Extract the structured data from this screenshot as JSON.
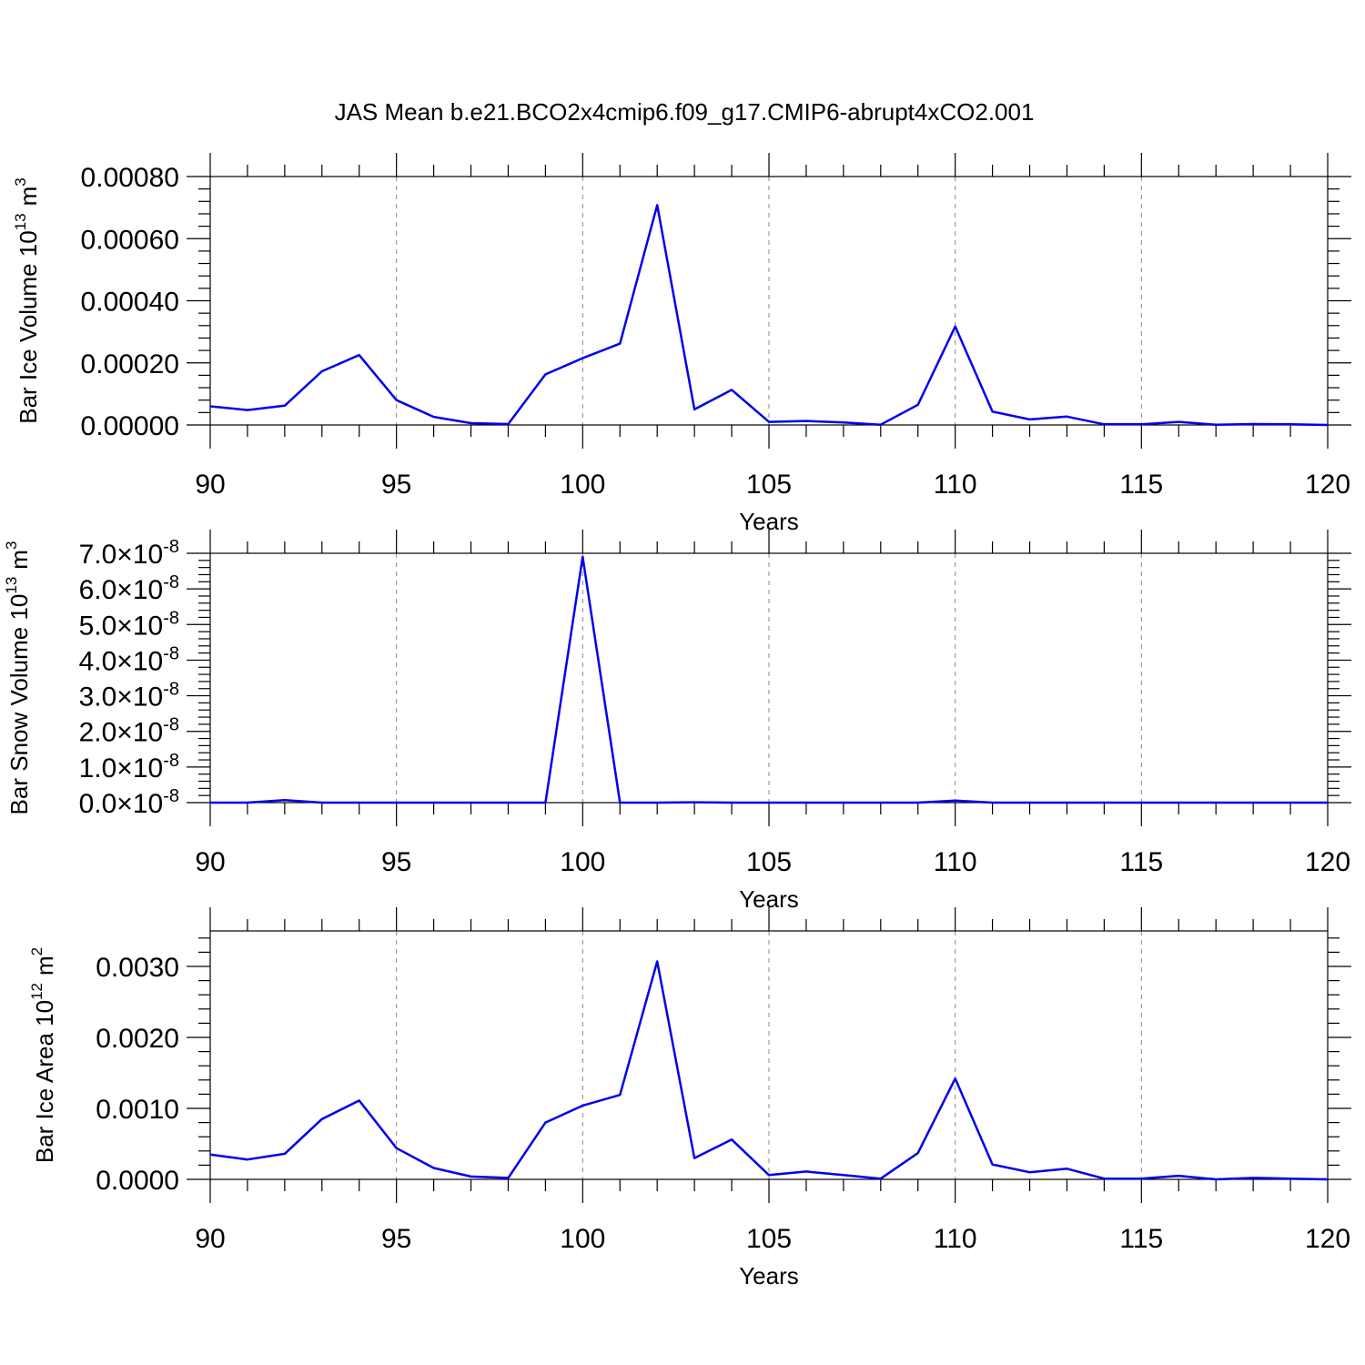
{
  "title": "JAS Mean b.e21.BCO2x4cmip6.f09_g17.CMIP6-abrupt4xCO2.001",
  "colors": {
    "line": "#0000ee",
    "axis": "#000000",
    "grid": "#888888"
  },
  "chart_data": [
    {
      "type": "line",
      "ylabel": {
        "main": "Bar Ice Volume 10",
        "sup": "13",
        "unit": "m",
        "unit_sup": "3"
      },
      "xlabel": "Years",
      "xlim": [
        90,
        120
      ],
      "ylim": [
        0,
        0.0008
      ],
      "x_ticks": [
        "90",
        "95",
        "100",
        "105",
        "110",
        "115",
        "120"
      ],
      "y_ticks": [
        "0.00000",
        "0.00020",
        "0.00040",
        "0.00060",
        "0.00080"
      ],
      "grid": "vertical dashed at major x ticks",
      "x": [
        90,
        91,
        92,
        93,
        94,
        95,
        96,
        97,
        98,
        99,
        100,
        101,
        102,
        103,
        104,
        105,
        106,
        107,
        108,
        109,
        110,
        111,
        112,
        113,
        114,
        115,
        116,
        117,
        118,
        119,
        120
      ],
      "values": [
        6e-05,
        4.8e-05,
        6.2e-05,
        0.000173,
        0.000225,
        8e-05,
        2.6e-05,
        6e-06,
        3e-06,
        0.000163,
        0.000215,
        0.000262,
        0.000708,
        5e-05,
        0.000113,
        1e-05,
        1.3e-05,
        8e-06,
        1e-06,
        6.5e-05,
        0.000317,
        4.3e-05,
        1.8e-05,
        2.7e-05,
        2e-06,
        2e-06,
        1e-05,
        1e-06,
        3e-06,
        2e-06,
        0.0
      ]
    },
    {
      "type": "line",
      "ylabel": {
        "main": "Bar Snow Volume 10",
        "sup": "13",
        "unit": "m",
        "unit_sup": "3"
      },
      "xlabel": "Years",
      "xlim": [
        90,
        120
      ],
      "ylim": [
        0,
        7e-08
      ],
      "x_ticks": [
        "90",
        "95",
        "100",
        "105",
        "110",
        "115",
        "120"
      ],
      "y_ticks": [
        {
          "mantissa": "0.0",
          "times": "×",
          "base": "10",
          "exp": "-8"
        },
        {
          "mantissa": "1.0",
          "times": "×",
          "base": "10",
          "exp": "-8"
        },
        {
          "mantissa": "2.0",
          "times": "×",
          "base": "10",
          "exp": "-8"
        },
        {
          "mantissa": "3.0",
          "times": "×",
          "base": "10",
          "exp": "-8"
        },
        {
          "mantissa": "4.0",
          "times": "×",
          "base": "10",
          "exp": "-8"
        },
        {
          "mantissa": "5.0",
          "times": "×",
          "base": "10",
          "exp": "-8"
        },
        {
          "mantissa": "6.0",
          "times": "×",
          "base": "10",
          "exp": "-8"
        },
        {
          "mantissa": "7.0",
          "times": "×",
          "base": "10",
          "exp": "-8"
        }
      ],
      "grid": "vertical dashed at major x ticks",
      "x": [
        90,
        91,
        92,
        93,
        94,
        95,
        96,
        97,
        98,
        99,
        100,
        101,
        102,
        103,
        104,
        105,
        106,
        107,
        108,
        109,
        110,
        111,
        112,
        113,
        114,
        115,
        116,
        117,
        118,
        119,
        120
      ],
      "values": [
        0,
        0,
        7e-10,
        0,
        0,
        0,
        0,
        0,
        0,
        0,
        6.9e-08,
        0,
        0,
        1e-10,
        0,
        0,
        0,
        0,
        0,
        0,
        6e-10,
        0,
        0,
        0,
        0,
        0,
        0,
        0,
        0,
        0,
        0
      ]
    },
    {
      "type": "line",
      "ylabel": {
        "main": "Bar Ice Area 10",
        "sup": "12",
        "unit": "m",
        "unit_sup": "2"
      },
      "xlabel": "Years",
      "xlim": [
        90,
        120
      ],
      "ylim": [
        0,
        0.0035
      ],
      "x_ticks": [
        "90",
        "95",
        "100",
        "105",
        "110",
        "115",
        "120"
      ],
      "y_ticks": [
        "0.0000",
        "0.0010",
        "0.0020",
        "0.0030"
      ],
      "grid": "vertical dashed at major x ticks",
      "x": [
        90,
        91,
        92,
        93,
        94,
        95,
        96,
        97,
        98,
        99,
        100,
        101,
        102,
        103,
        104,
        105,
        106,
        107,
        108,
        109,
        110,
        111,
        112,
        113,
        114,
        115,
        116,
        117,
        118,
        119,
        120
      ],
      "values": [
        0.00035,
        0.00028,
        0.00036,
        0.00085,
        0.00111,
        0.00044,
        0.00016,
        4e-05,
        2e-05,
        0.0008,
        0.00104,
        0.00119,
        0.00307,
        0.0003,
        0.00056,
        6e-05,
        0.00011,
        6e-05,
        1e-05,
        0.00037,
        0.00142,
        0.00021,
        0.0001,
        0.00015,
        1e-05,
        1e-05,
        5e-05,
        0.0,
        2e-05,
        1e-05,
        0.0
      ]
    }
  ]
}
